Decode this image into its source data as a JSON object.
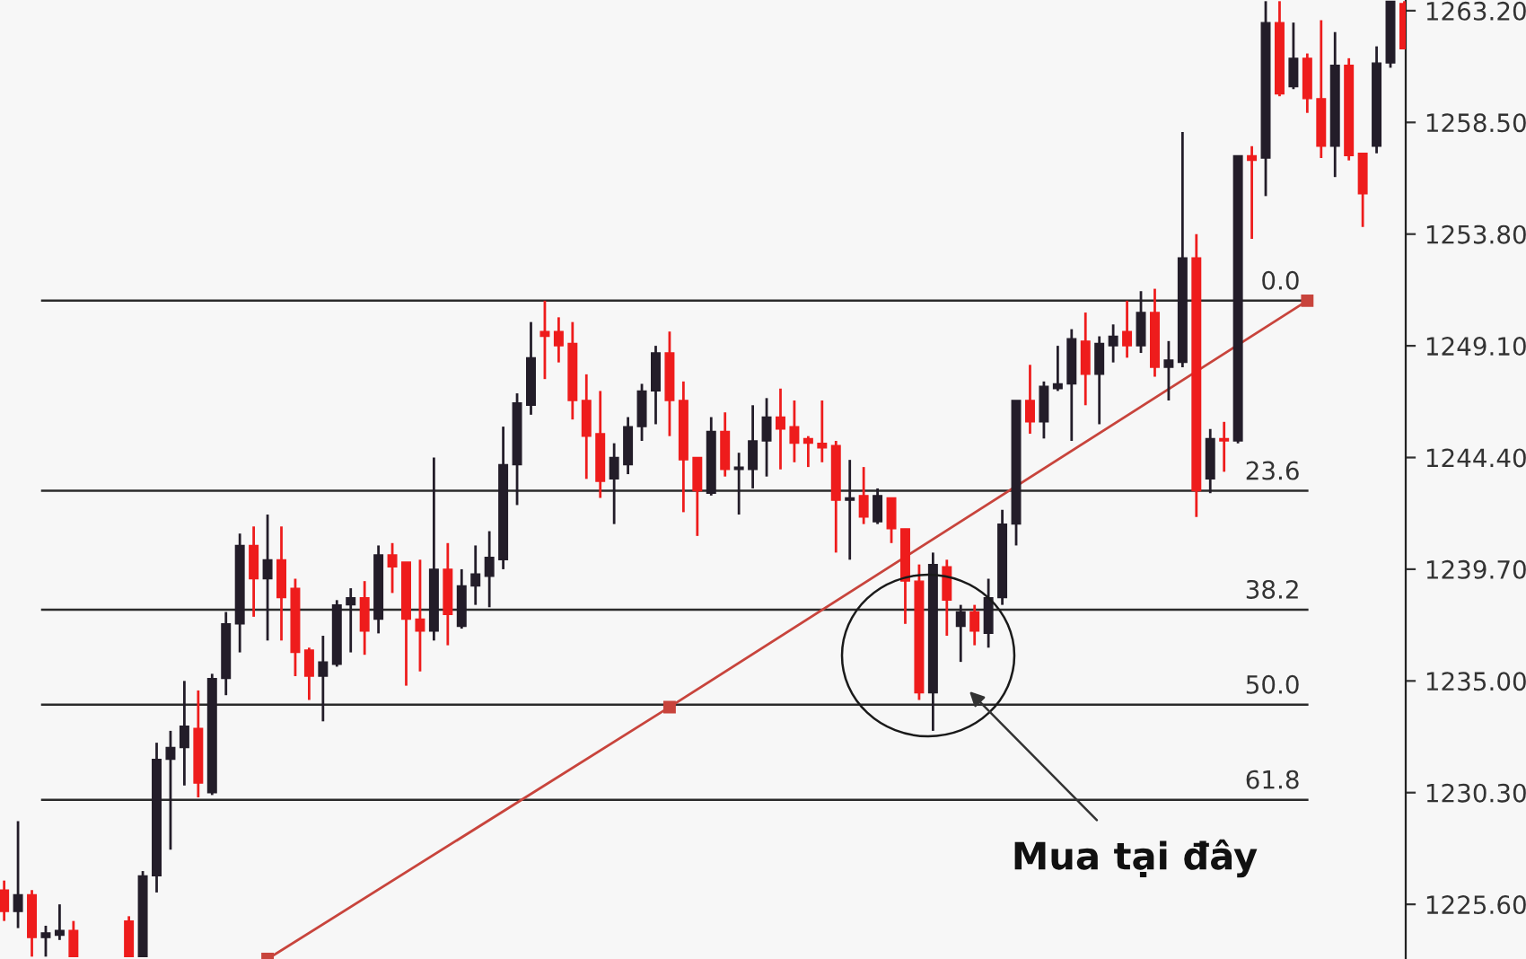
{
  "chart_data": {
    "type": "candlestick",
    "categories": [
      null,
      null,
      null,
      null,
      null,
      null,
      null,
      null,
      null,
      null,
      null,
      null,
      null,
      null,
      null,
      null,
      null,
      null,
      null,
      null,
      null,
      null,
      null,
      null,
      null,
      null,
      null,
      null,
      null,
      null,
      null,
      null,
      null,
      null,
      null,
      null,
      null,
      null,
      null,
      null,
      null,
      null,
      null,
      null,
      null,
      null,
      null,
      null,
      null,
      null,
      null,
      null,
      null,
      null,
      null,
      null,
      null,
      null,
      null,
      null,
      null,
      null,
      null,
      null,
      null,
      null,
      null,
      null,
      null,
      null,
      null,
      null,
      null,
      null,
      null,
      null,
      null,
      null,
      null,
      null,
      null,
      null,
      null,
      null,
      null,
      null,
      null,
      null,
      null,
      null,
      null,
      null,
      null,
      null,
      null,
      null,
      null,
      null,
      null,
      null,
      null,
      null
    ],
    "ohlc": [
      [
        1226.2,
        1226.6,
        1224.9,
        1225.3
      ],
      [
        1225.3,
        1229.1,
        1224.6,
        1226.0
      ],
      [
        1226.0,
        1226.2,
        1223.4,
        1224.2
      ],
      [
        1224.2,
        1224.7,
        1223.4,
        1224.4
      ],
      [
        1224.3,
        1225.6,
        1224.1,
        1224.5
      ],
      [
        1224.5,
        1224.9,
        1223.4,
        1223.4
      ],
      null,
      null,
      null,
      [
        1224.9,
        1225.1,
        1223.4,
        1223.4
      ],
      [
        1223.4,
        1227.0,
        1223.4,
        1226.8
      ],
      [
        1226.8,
        1232.4,
        1226.1,
        1231.7
      ],
      [
        1231.7,
        1232.9,
        1227.9,
        1232.2
      ],
      [
        1232.2,
        1235.0,
        1230.6,
        1233.1
      ],
      [
        1233.0,
        1234.6,
        1230.1,
        1230.7
      ],
      [
        1230.3,
        1235.3,
        1230.2,
        1235.1
      ],
      [
        1235.1,
        1237.9,
        1234.4,
        1237.4
      ],
      [
        1237.4,
        1241.2,
        1236.2,
        1240.7
      ],
      [
        1240.7,
        1241.5,
        1237.7,
        1239.3
      ],
      [
        1239.3,
        1242.0,
        1236.7,
        1240.1
      ],
      [
        1240.1,
        1241.5,
        1236.7,
        1238.5
      ],
      [
        1238.9,
        1239.3,
        1235.2,
        1236.2
      ],
      [
        1236.3,
        1236.4,
        1234.2,
        1235.2
      ],
      [
        1235.2,
        1236.9,
        1233.3,
        1235.8
      ],
      [
        1235.7,
        1238.4,
        1235.6,
        1238.2
      ],
      [
        1238.2,
        1238.9,
        1236.2,
        1238.5
      ],
      [
        1238.5,
        1239.2,
        1236.1,
        1237.1
      ],
      [
        1237.6,
        1240.7,
        1237.0,
        1240.3
      ],
      [
        1240.3,
        1240.8,
        1238.7,
        1239.8
      ],
      [
        1240.0,
        1240.0,
        1234.8,
        1237.6
      ],
      [
        1237.6,
        1240.1,
        1235.4,
        1237.1
      ],
      [
        1237.1,
        1244.4,
        1236.7,
        1239.7
      ],
      [
        1239.7,
        1240.8,
        1236.5,
        1237.8
      ],
      [
        1237.3,
        1239.7,
        1237.2,
        1239.0
      ],
      [
        1239.0,
        1240.7,
        1238.2,
        1239.5
      ],
      [
        1239.4,
        1241.3,
        1238.1,
        1240.2
      ],
      [
        1240.1,
        1245.7,
        1239.7,
        1244.1
      ],
      [
        1244.1,
        1247.1,
        1242.4,
        1246.7
      ],
      [
        1246.6,
        1250.1,
        1246.2,
        1248.6
      ],
      [
        1249.7,
        1251.0,
        1247.7,
        1249.5
      ],
      [
        1249.7,
        1250.3,
        1248.4,
        1249.1
      ],
      [
        1249.2,
        1250.1,
        1246.0,
        1246.8
      ],
      [
        1246.8,
        1247.9,
        1243.5,
        1245.3
      ],
      [
        1245.4,
        1247.2,
        1242.7,
        1243.4
      ],
      [
        1243.5,
        1245.0,
        1241.6,
        1244.4
      ],
      [
        1244.1,
        1246.1,
        1243.7,
        1245.7
      ],
      [
        1245.7,
        1247.5,
        1245.1,
        1247.2
      ],
      [
        1247.2,
        1249.1,
        1245.8,
        1248.8
      ],
      [
        1248.8,
        1249.7,
        1245.3,
        1246.8
      ],
      [
        1246.8,
        1247.6,
        1242.1,
        1244.3
      ],
      [
        1244.4,
        1244.4,
        1241.1,
        1243.0
      ],
      [
        1242.9,
        1246.1,
        1242.8,
        1245.5
      ],
      [
        1245.5,
        1246.3,
        1243.6,
        1243.9
      ],
      [
        1243.9,
        1244.6,
        1242.0,
        1244.0
      ],
      [
        1243.9,
        1246.6,
        1243.1,
        1245.1
      ],
      [
        1245.1,
        1246.9,
        1243.6,
        1246.1
      ],
      [
        1246.1,
        1247.3,
        1243.9,
        1245.6
      ],
      [
        1245.7,
        1246.8,
        1244.2,
        1245.0
      ],
      [
        1245.2,
        1245.3,
        1244.0,
        1245.0
      ],
      [
        1245.0,
        1246.8,
        1244.2,
        1244.8
      ],
      [
        1244.9,
        1245.1,
        1240.4,
        1242.6
      ],
      [
        1242.6,
        1244.3,
        1240.1,
        1242.7
      ],
      [
        1242.8,
        1244.0,
        1241.6,
        1241.9
      ],
      [
        1241.7,
        1243.1,
        1241.6,
        1242.8
      ],
      [
        1242.7,
        1242.7,
        1240.8,
        1241.4
      ],
      [
        1241.4,
        1241.4,
        1237.4,
        1239.2
      ],
      [
        1239.2,
        1239.9,
        1234.2,
        1234.5
      ],
      [
        1234.5,
        1240.4,
        1232.9,
        1239.9
      ],
      [
        1239.8,
        1240.1,
        1236.9,
        1238.4
      ],
      [
        1237.3,
        1238.2,
        1235.8,
        1237.9
      ],
      [
        1237.9,
        1238.2,
        1236.5,
        1237.1
      ],
      [
        1237.0,
        1239.3,
        1236.4,
        1238.5
      ],
      [
        1238.5,
        1242.2,
        1238.2,
        1241.6
      ],
      [
        1241.6,
        1246.8,
        1240.7,
        1246.8
      ],
      [
        1246.8,
        1248.3,
        1245.4,
        1245.9
      ],
      [
        1245.9,
        1247.6,
        1245.2,
        1247.4
      ],
      [
        1247.3,
        1249.1,
        1247.2,
        1247.5
      ],
      [
        1247.5,
        1249.8,
        1245.1,
        1249.4
      ],
      [
        1249.3,
        1250.5,
        1246.6,
        1247.9
      ],
      [
        1247.9,
        1249.5,
        1245.8,
        1249.2
      ],
      [
        1249.1,
        1250.0,
        1248.4,
        1249.5
      ],
      [
        1249.7,
        1251.0,
        1248.6,
        1249.1
      ],
      [
        1249.1,
        1251.4,
        1248.8,
        1250.5
      ],
      [
        1250.5,
        1251.5,
        1247.8,
        1248.2
      ],
      [
        1248.2,
        1249.3,
        1246.8,
        1248.5
      ],
      [
        1248.4,
        1258.1,
        1248.2,
        1252.8
      ],
      [
        1252.8,
        1253.8,
        1241.9,
        1243.0
      ],
      [
        1243.5,
        1245.6,
        1242.9,
        1245.2
      ],
      [
        1245.2,
        1245.9,
        1243.8,
        1245.1
      ],
      [
        1245.1,
        1257.1,
        1245.0,
        1257.1
      ],
      [
        1257.1,
        1257.5,
        1253.6,
        1256.9
      ],
      [
        1257.0,
        1263.6,
        1255.4,
        1262.7
      ],
      [
        1262.7,
        1263.6,
        1259.6,
        1259.7
      ],
      [
        1260.0,
        1262.7,
        1259.9,
        1261.2
      ],
      [
        1261.2,
        1261.4,
        1258.9,
        1259.5
      ],
      [
        1259.5,
        1262.8,
        1257.0,
        1257.5
      ],
      [
        1257.5,
        1262.3,
        1256.2,
        1260.9
      ],
      [
        1260.9,
        1261.2,
        1256.9,
        1257.1
      ],
      [
        1257.2,
        1257.2,
        1254.1,
        1255.5
      ],
      [
        1257.5,
        1261.7,
        1257.2,
        1261.0
      ],
      [
        1261.0,
        1263.6,
        1260.8,
        1263.6
      ],
      [
        1263.5,
        1263.6,
        1261.6,
        1261.6
      ]
    ],
    "colors": [
      "#ee1c1c",
      "#231d29",
      "#ee1c1c",
      "#231d29",
      "#231d29",
      "#ee1c1c",
      null,
      null,
      null,
      "#ee1c1c",
      "#231d29",
      "#231d29",
      "#231d29",
      "#231d29",
      "#ee1c1c",
      "#231d29",
      "#231d29",
      "#231d29",
      "#ee1c1c",
      "#231d29",
      "#ee1c1c",
      "#ee1c1c",
      "#ee1c1c",
      "#231d29",
      "#231d29",
      "#231d29",
      "#ee1c1c",
      "#231d29",
      "#ee1c1c",
      "#ee1c1c",
      "#ee1c1c",
      "#231d29",
      "#ee1c1c",
      "#231d29",
      "#231d29",
      "#231d29",
      "#231d29",
      "#231d29",
      "#231d29",
      "#ee1c1c",
      "#ee1c1c",
      "#ee1c1c",
      "#ee1c1c",
      "#ee1c1c",
      "#231d29",
      "#231d29",
      "#231d29",
      "#231d29",
      "#ee1c1c",
      "#ee1c1c",
      "#ee1c1c",
      "#231d29",
      "#ee1c1c",
      "#231d29",
      "#231d29",
      "#231d29",
      "#ee1c1c",
      "#ee1c1c",
      "#ee1c1c",
      "#ee1c1c",
      "#ee1c1c",
      "#231d29",
      "#ee1c1c",
      "#231d29",
      "#ee1c1c",
      "#ee1c1c",
      "#ee1c1c",
      "#231d29",
      "#ee1c1c",
      "#231d29",
      "#ee1c1c",
      "#231d29",
      "#231d29",
      "#231d29",
      "#ee1c1c",
      "#231d29",
      "#231d29",
      "#231d29",
      "#ee1c1c",
      "#231d29",
      "#231d29",
      "#ee1c1c",
      "#231d29",
      "#ee1c1c",
      "#231d29",
      "#231d29",
      "#ee1c1c",
      "#231d29",
      "#ee1c1c",
      "#231d29",
      "#ee1c1c",
      "#231d29",
      "#ee1c1c",
      "#231d29",
      "#ee1c1c",
      "#ee1c1c",
      "#231d29",
      "#ee1c1c",
      "#ee1c1c",
      "#231d29",
      "#231d29",
      "#ee1c1c"
    ],
    "series": [
      {
        "type": "line",
        "values": [
          null,
          null,
          null,
          null,
          null,
          null,
          null,
          null,
          null,
          null,
          null,
          null,
          null,
          null,
          null,
          null,
          null,
          null,
          null,
          1223.3,
          null,
          null,
          null,
          null,
          null,
          null,
          null,
          null,
          null,
          null,
          null,
          null,
          null,
          null,
          null,
          null,
          null,
          null,
          null,
          null,
          null,
          null,
          null,
          null,
          null,
          null,
          null,
          null,
          1233.9,
          null,
          null,
          null,
          null,
          null,
          null,
          null,
          null,
          null,
          null,
          null,
          null,
          null,
          null,
          null,
          null,
          null,
          null,
          null,
          null,
          null,
          null,
          null,
          null,
          null,
          null,
          null,
          null,
          null,
          null,
          null,
          null,
          null,
          null,
          null,
          null,
          null,
          null,
          null,
          null,
          null,
          null,
          null,
          null,
          null,
          1251.0,
          null,
          null,
          null,
          null,
          null,
          null,
          null
        ],
        "color": "#c8443c",
        "marker": "square"
      }
    ],
    "ref_lines": [
      {
        "axis": "y",
        "value": 1251.0,
        "color": "#2b2b2b"
      },
      {
        "axis": "y",
        "value": 1243.0,
        "color": "#2b2b2b"
      },
      {
        "axis": "y",
        "value": 1238.0,
        "color": "#2b2b2b"
      },
      {
        "axis": "y",
        "value": 1234.0,
        "color": "#2b2b2b"
      },
      {
        "axis": "y",
        "value": 1230.0,
        "color": "#2b2b2b"
      }
    ],
    "annotations": [
      {
        "text": "0.0",
        "y": 1251.0
      },
      {
        "text": "23.6",
        "y": 1243.0
      },
      {
        "text": "38.2",
        "y": 1238.0
      },
      {
        "text": "50.0",
        "y": 1234.0
      },
      {
        "text": "61.8",
        "y": 1230.0
      },
      "Mua tại đây"
    ],
    "ylim": [
      1223.3,
      1263.65
    ],
    "yticks": [
      {
        "value": 1263.2,
        "label": "1263.20"
      },
      {
        "value": 1258.5,
        "label": "1258.50"
      },
      {
        "value": 1253.8,
        "label": "1253.80"
      },
      {
        "value": 1249.1,
        "label": "1249.10"
      },
      {
        "value": 1244.4,
        "label": "1244.40"
      },
      {
        "value": 1239.7,
        "label": "1239.70"
      },
      {
        "value": 1235.0,
        "label": "1235.00"
      },
      {
        "value": 1230.3,
        "label": "1230.30"
      },
      {
        "value": 1225.6,
        "label": "1225.60"
      }
    ],
    "tick_labels": "y",
    "grid": false,
    "legend": false
  }
}
